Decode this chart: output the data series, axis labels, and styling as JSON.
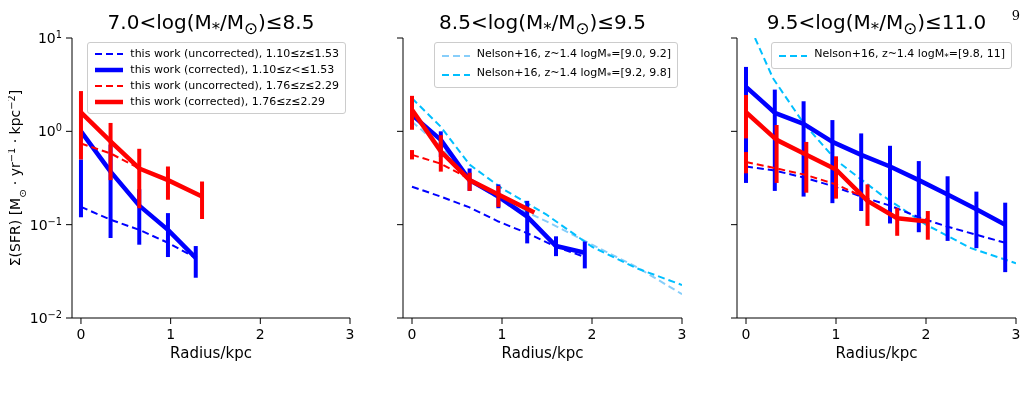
{
  "chart_data": [
    {
      "type": "line",
      "title": "7.0<log(M$_{*}$/M$_{⊙}$)≤8.5",
      "xlabel": "Radius/kpc",
      "ylabel": "Σ(SFR) [M$_{⊙}$ · yr$^{−1}$ · kpc$^{−2}$]",
      "xlim": [
        -0.1,
        3
      ],
      "xticks": [
        0,
        1,
        2,
        3
      ],
      "ylim": [
        0.01,
        10
      ],
      "yticks": [
        {
          "value": 0.01,
          "label": "10$^{−2}$"
        },
        {
          "value": 0.1,
          "label": "10$^{−1}$"
        },
        {
          "value": 1,
          "label": "10$^{0}$"
        },
        {
          "value": 10,
          "label": "10$^{1}$"
        }
      ],
      "log": true,
      "legend": "top right",
      "series": [
        {
          "name": "this work (uncorrected), 1.10≤z≤1.53",
          "color": "#0000ff",
          "line_style": "dashed",
          "x": [
            0,
            0.33,
            0.65,
            0.97,
            1.28
          ],
          "values": [
            0.155,
            0.113,
            0.088,
            0.064,
            0.044
          ],
          "errors": [
            [
              0.12,
              0.5
            ],
            null,
            null,
            null,
            null
          ]
        },
        {
          "name": "this work (corrected), 1.10≤z<≤1.53",
          "color": "#0000ff",
          "line_style": "solid",
          "x": [
            0,
            0.33,
            0.65,
            0.97,
            1.28
          ],
          "values": [
            1.0,
            0.37,
            0.16,
            0.088,
            0.044
          ],
          "errors": [
            null,
            [
              0.072,
              0.72
            ],
            [
              0.061,
              0.24
            ],
            [
              0.045,
              0.133
            ],
            [
              0.027,
              0.059
            ]
          ]
        },
        {
          "name": "this work (uncorrected), 1.76≤z≤2.29",
          "color": "#ff0000",
          "line_style": "dashed",
          "x": [
            0,
            0.33,
            0.65
          ],
          "values": [
            0.74,
            0.58,
            0.4
          ]
        },
        {
          "name": "this work (corrected), 1.76≤z≤2.29",
          "color": "#ff0000",
          "line_style": "solid",
          "x": [
            0,
            0.33,
            0.65,
            0.97,
            1.35
          ],
          "values": [
            1.6,
            0.78,
            0.4,
            0.3,
            0.2
          ],
          "errors": [
            [
              0.5,
              2.7
            ],
            [
              0.3,
              1.23
            ],
            [
              0.15,
              0.65
            ],
            [
              0.185,
              0.42
            ],
            [
              0.115,
              0.29
            ]
          ]
        }
      ]
    },
    {
      "type": "line",
      "title": "8.5<log(M$_{*}$/M$_{⊙}$)≤9.5",
      "xlabel": "Radius/kpc",
      "xlim": [
        -0.1,
        3
      ],
      "xticks": [
        0,
        1,
        2,
        3
      ],
      "ylim": [
        0.01,
        10
      ],
      "yticks": [
        {
          "value": 0.01,
          "label": null
        },
        {
          "value": 0.1,
          "label": null
        },
        {
          "value": 1,
          "label": null
        },
        {
          "value": 10,
          "label": null
        }
      ],
      "log": true,
      "tick_labels": "x",
      "legend": "top right",
      "series": [
        {
          "name": "Nelson+16, z~1.4 logM$_{*}$=[9.0, 9.2]",
          "color": "#87cefa",
          "line_style": "dashed",
          "x": [
            0,
            0.32,
            0.64,
            1,
            1.5,
            2,
            2.5,
            3
          ],
          "values": [
            1.27,
            0.69,
            0.3,
            0.18,
            0.108,
            0.061,
            0.035,
            0.018
          ]
        },
        {
          "name": "Nelson+16, z~1.4 logM$_{*}$=[9.2, 9.8]",
          "color": "#00bfff",
          "line_style": "dashed",
          "x": [
            0,
            0.32,
            0.64,
            1,
            1.5,
            2,
            2.5,
            3
          ],
          "values": [
            2.26,
            1.12,
            0.44,
            0.245,
            0.127,
            0.058,
            0.034,
            0.0226
          ]
        },
        {
          "color": "#0000ff",
          "line_style": "dashed",
          "x": [
            0,
            0.32,
            0.64,
            0.96,
            1.28,
            1.6,
            1.92
          ],
          "values": [
            0.255,
            0.2,
            0.153,
            0.108,
            0.081,
            0.058,
            0.045
          ]
        },
        {
          "color": "#0000ff",
          "line_style": "solid",
          "x": [
            0,
            0.32,
            0.64,
            0.96,
            1.28,
            1.6,
            1.92
          ],
          "values": [
            1.5,
            0.81,
            0.3,
            0.2,
            0.122,
            0.059,
            0.05
          ],
          "errors": [
            [
              1.38,
              1.9
            ],
            [
              0.53,
              1.0
            ],
            [
              0.23,
              0.4
            ],
            [
              0.15,
              0.27
            ],
            [
              0.063,
              0.18
            ],
            [
              0.046,
              0.075
            ],
            [
              0.034,
              0.066
            ]
          ]
        },
        {
          "color": "#ff0000",
          "line_style": "dashed",
          "x": [
            0,
            0.32,
            0.64
          ],
          "values": [
            0.56,
            0.45,
            0.31
          ],
          "errors": [
            [
              0.5,
              0.63
            ],
            null,
            null
          ]
        },
        {
          "color": "#ff0000",
          "line_style": "solid",
          "x": [
            0,
            0.32,
            0.64,
            0.96,
            1.36
          ],
          "values": [
            1.7,
            0.61,
            0.3,
            0.21,
            0.135
          ],
          "errors": [
            [
              1.04,
              2.4
            ],
            [
              0.37,
              0.91
            ],
            [
              0.23,
              0.36
            ],
            [
              0.155,
              0.26
            ],
            null
          ]
        }
      ]
    },
    {
      "type": "line",
      "title": "9.5<log(M$_{*}$/M$_{⊙}$)≤11.0",
      "xlabel": "Radius/kpc",
      "xlim": [
        -0.1,
        3
      ],
      "xticks": [
        0,
        1,
        2,
        3
      ],
      "ylim": [
        0.01,
        10
      ],
      "yticks": [
        {
          "value": 0.01,
          "label": null
        },
        {
          "value": 0.1,
          "label": null
        },
        {
          "value": 1,
          "label": null
        },
        {
          "value": 10,
          "label": null
        }
      ],
      "log": true,
      "tick_labels": "x",
      "legend": "top right",
      "annotations": [
        "9"
      ],
      "series": [
        {
          "name": "Nelson+16, z~1.4 logM$_{*}$=[9.8, 11]",
          "color": "#00bfff",
          "line_style": "dashed",
          "x": [
            0.1,
            0.3,
            0.64,
            1,
            1.5,
            2,
            2.5,
            3
          ],
          "values": [
            10,
            3.7,
            1.22,
            0.49,
            0.21,
            0.1,
            0.056,
            0.0386
          ]
        },
        {
          "color": "#0000ff",
          "line_style": "dashed",
          "x": [
            0,
            0.32,
            0.64,
            0.96,
            1.28,
            1.6,
            1.92,
            2.24,
            2.56,
            2.88
          ],
          "values": [
            0.42,
            0.38,
            0.32,
            0.26,
            0.2,
            0.16,
            0.12,
            0.095,
            0.078,
            0.064
          ]
        },
        {
          "color": "#0000ff",
          "line_style": "solid",
          "x": [
            0,
            0.32,
            0.64,
            0.96,
            1.28,
            1.6,
            1.92,
            2.24,
            2.56,
            2.88
          ],
          "values": [
            3.0,
            1.58,
            1.2,
            0.77,
            0.56,
            0.42,
            0.3,
            0.21,
            0.146,
            0.1
          ],
          "errors": [
            [
              0.28,
              4.9
            ],
            [
              0.23,
              2.8
            ],
            [
              0.2,
              2.1
            ],
            [
              0.17,
              1.32
            ],
            [
              0.14,
              0.95
            ],
            [
              0.103,
              0.7
            ],
            [
              0.083,
              0.48
            ],
            [
              0.067,
              0.33
            ],
            [
              0.056,
              0.226
            ],
            [
              0.031,
              0.172
            ]
          ]
        },
        {
          "color": "#ff0000",
          "line_style": "dashed",
          "x": [
            0,
            0.34,
            0.67,
            1.0,
            1.35
          ],
          "values": [
            0.47,
            0.4,
            0.34,
            0.27,
            0.19
          ],
          "errors": [
            [
              0.355,
              0.6
            ],
            null,
            null,
            null,
            null
          ]
        },
        {
          "color": "#ff0000",
          "line_style": "solid",
          "x": [
            0,
            0.34,
            0.67,
            1.0,
            1.35,
            1.68,
            2.02
          ],
          "values": [
            1.6,
            0.81,
            0.56,
            0.39,
            0.18,
            0.117,
            0.108
          ],
          "errors": [
            [
              0.84,
              2.45
            ],
            [
              0.28,
              1.17
            ],
            [
              0.22,
              0.77
            ],
            [
              0.19,
              0.54
            ],
            [
              0.097,
              0.27
            ],
            [
              0.076,
              0.15
            ],
            [
              0.069,
              0.14
            ]
          ]
        }
      ]
    }
  ]
}
